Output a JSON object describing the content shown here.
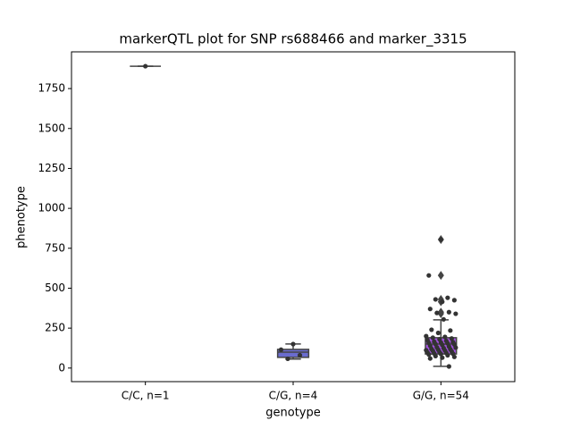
{
  "chart_data": {
    "type": "box",
    "title": "markerQTL plot for SNP rs688466 and marker_3315",
    "x_label": "genotype",
    "y_label": "phenotype",
    "categories": [
      "C/C, n=1",
      "C/G, n=4",
      "G/G, n=54"
    ],
    "colors": [
      "#6a6ccf",
      "#6a6ccf",
      "#a452e0"
    ],
    "point_color": "#333333",
    "ylim": [
      -85,
      1980
    ],
    "yticks": [
      0,
      250,
      500,
      750,
      1000,
      1250,
      1500,
      1750
    ],
    "boxes": [
      {
        "whislo": 1890,
        "q1": 1890,
        "median": 1890,
        "q3": 1890,
        "whishi": 1890,
        "fliers": []
      },
      {
        "whislo": 56,
        "q1": 67,
        "median": 100,
        "q3": 117,
        "whishi": 151,
        "fliers": []
      },
      {
        "whislo": 11,
        "q1": 88,
        "median": 150,
        "q3": 190,
        "whishi": 302,
        "fliers": [
          805,
          580,
          430,
          415,
          350,
          340
        ]
      }
    ],
    "points": [
      [
        1890
      ],
      [
        150,
        115,
        80,
        58
      ],
      [
        805,
        580,
        440,
        430,
        425,
        415,
        370,
        350,
        345,
        340,
        305,
        240,
        235,
        220,
        200,
        195,
        190,
        185,
        180,
        175,
        170,
        165,
        162,
        160,
        158,
        155,
        150,
        148,
        145,
        140,
        135,
        130,
        128,
        125,
        120,
        118,
        115,
        112,
        110,
        108,
        105,
        100,
        98,
        95,
        92,
        90,
        88,
        85,
        80,
        75,
        70,
        65,
        60,
        10
      ]
    ]
  }
}
